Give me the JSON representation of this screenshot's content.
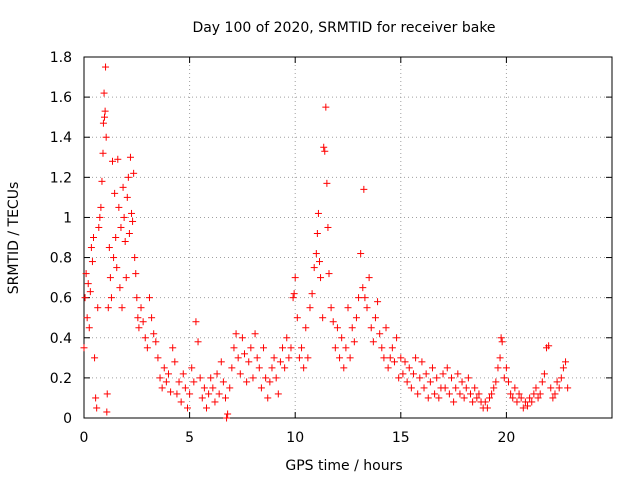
{
  "chart_data": {
    "type": "scatter",
    "title": "Day 100 of 2020, SRMTID for receiver bake",
    "xlabel": "GPS time / hours",
    "ylabel": "SRMTID / TECUs",
    "xlim": [
      0,
      25
    ],
    "ylim": [
      0,
      1.8
    ],
    "xticks": [
      0,
      5,
      10,
      15,
      20
    ],
    "xtick_labels": [
      "0",
      "5",
      "10",
      "15",
      "20"
    ],
    "yticks": [
      0,
      0.2,
      0.4,
      0.6,
      0.8,
      1,
      1.2,
      1.4,
      1.6,
      1.8
    ],
    "ytick_labels": [
      "0",
      "0.2",
      "0.4",
      "0.6",
      "0.8",
      "1",
      "1.2",
      "1.4",
      "1.6",
      "1.8"
    ],
    "grid": true,
    "marker": "+",
    "color": "#ff0000",
    "series": [
      {
        "name": "SRMTID",
        "points": [
          [
            0.0,
            0.35
          ],
          [
            0.05,
            0.6
          ],
          [
            0.1,
            0.72
          ],
          [
            0.15,
            0.5
          ],
          [
            0.2,
            0.67
          ],
          [
            0.25,
            0.45
          ],
          [
            0.3,
            0.63
          ],
          [
            0.35,
            0.85
          ],
          [
            0.4,
            0.78
          ],
          [
            0.45,
            0.9
          ],
          [
            0.5,
            0.3
          ],
          [
            0.55,
            0.1
          ],
          [
            0.6,
            0.05
          ],
          [
            0.65,
            0.55
          ],
          [
            0.7,
            0.95
          ],
          [
            0.75,
            1.0
          ],
          [
            0.8,
            1.05
          ],
          [
            0.85,
            1.18
          ],
          [
            0.9,
            1.32
          ],
          [
            0.92,
            1.47
          ],
          [
            0.95,
            1.62
          ],
          [
            0.97,
            1.5
          ],
          [
            1.0,
            1.53
          ],
          [
            1.02,
            1.75
          ],
          [
            1.05,
            1.4
          ],
          [
            1.08,
            0.03
          ],
          [
            1.1,
            0.12
          ],
          [
            1.15,
            0.55
          ],
          [
            1.2,
            0.85
          ],
          [
            1.25,
            0.7
          ],
          [
            1.3,
            0.6
          ],
          [
            1.35,
            1.28
          ],
          [
            1.4,
            0.8
          ],
          [
            1.45,
            1.12
          ],
          [
            1.5,
            0.9
          ],
          [
            1.55,
            0.75
          ],
          [
            1.6,
            1.29
          ],
          [
            1.65,
            1.05
          ],
          [
            1.7,
            0.65
          ],
          [
            1.75,
            0.95
          ],
          [
            1.8,
            0.55
          ],
          [
            1.85,
            1.15
          ],
          [
            1.9,
            1.0
          ],
          [
            1.95,
            0.88
          ],
          [
            2.0,
            0.7
          ],
          [
            2.05,
            1.1
          ],
          [
            2.1,
            1.2
          ],
          [
            2.15,
            0.92
          ],
          [
            2.2,
            1.3
          ],
          [
            2.25,
            1.02
          ],
          [
            2.3,
            0.98
          ],
          [
            2.35,
            1.22
          ],
          [
            2.4,
            0.8
          ],
          [
            2.45,
            0.72
          ],
          [
            2.5,
            0.6
          ],
          [
            2.55,
            0.5
          ],
          [
            2.6,
            0.45
          ],
          [
            2.7,
            0.55
          ],
          [
            2.8,
            0.48
          ],
          [
            2.9,
            0.4
          ],
          [
            3.0,
            0.35
          ],
          [
            3.1,
            0.6
          ],
          [
            3.2,
            0.5
          ],
          [
            3.3,
            0.42
          ],
          [
            3.4,
            0.38
          ],
          [
            3.5,
            0.3
          ],
          [
            3.6,
            0.2
          ],
          [
            3.7,
            0.15
          ],
          [
            3.8,
            0.25
          ],
          [
            3.9,
            0.18
          ],
          [
            4.0,
            0.22
          ],
          [
            4.1,
            0.13
          ],
          [
            4.2,
            0.35
          ],
          [
            4.3,
            0.28
          ],
          [
            4.4,
            0.12
          ],
          [
            4.5,
            0.18
          ],
          [
            4.6,
            0.08
          ],
          [
            4.7,
            0.22
          ],
          [
            4.8,
            0.15
          ],
          [
            4.9,
            0.05
          ],
          [
            5.0,
            0.12
          ],
          [
            5.1,
            0.25
          ],
          [
            5.2,
            0.18
          ],
          [
            5.3,
            0.48
          ],
          [
            5.4,
            0.38
          ],
          [
            5.5,
            0.2
          ],
          [
            5.6,
            0.1
          ],
          [
            5.7,
            0.15
          ],
          [
            5.8,
            0.05
          ],
          [
            5.9,
            0.12
          ],
          [
            6.0,
            0.2
          ],
          [
            6.1,
            0.15
          ],
          [
            6.2,
            0.08
          ],
          [
            6.3,
            0.22
          ],
          [
            6.4,
            0.12
          ],
          [
            6.5,
            0.28
          ],
          [
            6.6,
            0.18
          ],
          [
            6.7,
            0.1
          ],
          [
            6.75,
            0.0
          ],
          [
            6.8,
            0.02
          ],
          [
            6.9,
            0.15
          ],
          [
            7.0,
            0.25
          ],
          [
            7.1,
            0.35
          ],
          [
            7.2,
            0.42
          ],
          [
            7.3,
            0.3
          ],
          [
            7.4,
            0.22
          ],
          [
            7.5,
            0.4
          ],
          [
            7.6,
            0.32
          ],
          [
            7.7,
            0.18
          ],
          [
            7.8,
            0.28
          ],
          [
            7.9,
            0.35
          ],
          [
            8.0,
            0.2
          ],
          [
            8.1,
            0.42
          ],
          [
            8.2,
            0.3
          ],
          [
            8.3,
            0.25
          ],
          [
            8.4,
            0.15
          ],
          [
            8.5,
            0.35
          ],
          [
            8.6,
            0.2
          ],
          [
            8.7,
            0.1
          ],
          [
            8.8,
            0.18
          ],
          [
            8.9,
            0.25
          ],
          [
            9.0,
            0.3
          ],
          [
            9.1,
            0.2
          ],
          [
            9.2,
            0.12
          ],
          [
            9.3,
            0.28
          ],
          [
            9.4,
            0.35
          ],
          [
            9.5,
            0.25
          ],
          [
            9.6,
            0.4
          ],
          [
            9.7,
            0.3
          ],
          [
            9.8,
            0.35
          ],
          [
            9.9,
            0.6
          ],
          [
            9.95,
            0.62
          ],
          [
            10.0,
            0.7
          ],
          [
            10.1,
            0.5
          ],
          [
            10.2,
            0.3
          ],
          [
            10.3,
            0.35
          ],
          [
            10.4,
            0.25
          ],
          [
            10.5,
            0.45
          ],
          [
            10.6,
            0.3
          ],
          [
            10.7,
            0.55
          ],
          [
            10.8,
            0.62
          ],
          [
            10.9,
            0.75
          ],
          [
            11.0,
            0.82
          ],
          [
            11.05,
            0.92
          ],
          [
            11.1,
            1.02
          ],
          [
            11.15,
            0.78
          ],
          [
            11.2,
            0.7
          ],
          [
            11.3,
            0.5
          ],
          [
            11.35,
            1.35
          ],
          [
            11.4,
            1.33
          ],
          [
            11.45,
            1.55
          ],
          [
            11.5,
            1.17
          ],
          [
            11.55,
            0.95
          ],
          [
            11.6,
            0.72
          ],
          [
            11.7,
            0.55
          ],
          [
            11.8,
            0.48
          ],
          [
            11.9,
            0.35
          ],
          [
            12.0,
            0.45
          ],
          [
            12.1,
            0.3
          ],
          [
            12.2,
            0.4
          ],
          [
            12.3,
            0.25
          ],
          [
            12.4,
            0.35
          ],
          [
            12.5,
            0.55
          ],
          [
            12.6,
            0.3
          ],
          [
            12.7,
            0.45
          ],
          [
            12.8,
            0.38
          ],
          [
            12.9,
            0.5
          ],
          [
            13.0,
            0.6
          ],
          [
            13.1,
            0.82
          ],
          [
            13.2,
            0.65
          ],
          [
            13.25,
            1.14
          ],
          [
            13.3,
            0.6
          ],
          [
            13.4,
            0.55
          ],
          [
            13.5,
            0.7
          ],
          [
            13.6,
            0.45
          ],
          [
            13.7,
            0.38
          ],
          [
            13.8,
            0.5
          ],
          [
            13.9,
            0.58
          ],
          [
            14.0,
            0.42
          ],
          [
            14.1,
            0.35
          ],
          [
            14.2,
            0.3
          ],
          [
            14.3,
            0.45
          ],
          [
            14.4,
            0.25
          ],
          [
            14.5,
            0.3
          ],
          [
            14.6,
            0.35
          ],
          [
            14.7,
            0.28
          ],
          [
            14.8,
            0.4
          ],
          [
            14.9,
            0.2
          ],
          [
            15.0,
            0.3
          ],
          [
            15.1,
            0.22
          ],
          [
            15.2,
            0.28
          ],
          [
            15.3,
            0.18
          ],
          [
            15.4,
            0.25
          ],
          [
            15.5,
            0.15
          ],
          [
            15.6,
            0.22
          ],
          [
            15.7,
            0.3
          ],
          [
            15.8,
            0.12
          ],
          [
            15.9,
            0.2
          ],
          [
            16.0,
            0.28
          ],
          [
            16.1,
            0.15
          ],
          [
            16.2,
            0.22
          ],
          [
            16.3,
            0.1
          ],
          [
            16.4,
            0.18
          ],
          [
            16.5,
            0.25
          ],
          [
            16.6,
            0.12
          ],
          [
            16.7,
            0.2
          ],
          [
            16.8,
            0.1
          ],
          [
            16.9,
            0.15
          ],
          [
            17.0,
            0.22
          ],
          [
            17.1,
            0.15
          ],
          [
            17.2,
            0.25
          ],
          [
            17.3,
            0.12
          ],
          [
            17.4,
            0.2
          ],
          [
            17.5,
            0.08
          ],
          [
            17.6,
            0.15
          ],
          [
            17.7,
            0.22
          ],
          [
            17.8,
            0.12
          ],
          [
            17.9,
            0.18
          ],
          [
            18.0,
            0.1
          ],
          [
            18.1,
            0.15
          ],
          [
            18.2,
            0.2
          ],
          [
            18.3,
            0.12
          ],
          [
            18.4,
            0.08
          ],
          [
            18.5,
            0.15
          ],
          [
            18.6,
            0.1
          ],
          [
            18.7,
            0.12
          ],
          [
            18.8,
            0.08
          ],
          [
            18.9,
            0.05
          ],
          [
            19.0,
            0.08
          ],
          [
            19.1,
            0.05
          ],
          [
            19.2,
            0.1
          ],
          [
            19.3,
            0.12
          ],
          [
            19.4,
            0.15
          ],
          [
            19.5,
            0.18
          ],
          [
            19.6,
            0.25
          ],
          [
            19.7,
            0.3
          ],
          [
            19.75,
            0.4
          ],
          [
            19.8,
            0.38
          ],
          [
            19.9,
            0.2
          ],
          [
            20.0,
            0.25
          ],
          [
            20.1,
            0.18
          ],
          [
            20.2,
            0.12
          ],
          [
            20.3,
            0.1
          ],
          [
            20.4,
            0.15
          ],
          [
            20.5,
            0.08
          ],
          [
            20.6,
            0.12
          ],
          [
            20.7,
            0.1
          ],
          [
            20.8,
            0.05
          ],
          [
            20.9,
            0.08
          ],
          [
            21.0,
            0.06
          ],
          [
            21.1,
            0.1
          ],
          [
            21.2,
            0.08
          ],
          [
            21.3,
            0.12
          ],
          [
            21.4,
            0.15
          ],
          [
            21.5,
            0.1
          ],
          [
            21.6,
            0.12
          ],
          [
            21.7,
            0.18
          ],
          [
            21.8,
            0.22
          ],
          [
            21.9,
            0.35
          ],
          [
            22.0,
            0.36
          ],
          [
            22.1,
            0.15
          ],
          [
            22.2,
            0.1
          ],
          [
            22.3,
            0.12
          ],
          [
            22.4,
            0.18
          ],
          [
            22.5,
            0.15
          ],
          [
            22.6,
            0.2
          ],
          [
            22.7,
            0.25
          ],
          [
            22.8,
            0.28
          ],
          [
            22.9,
            0.15
          ]
        ]
      }
    ]
  }
}
